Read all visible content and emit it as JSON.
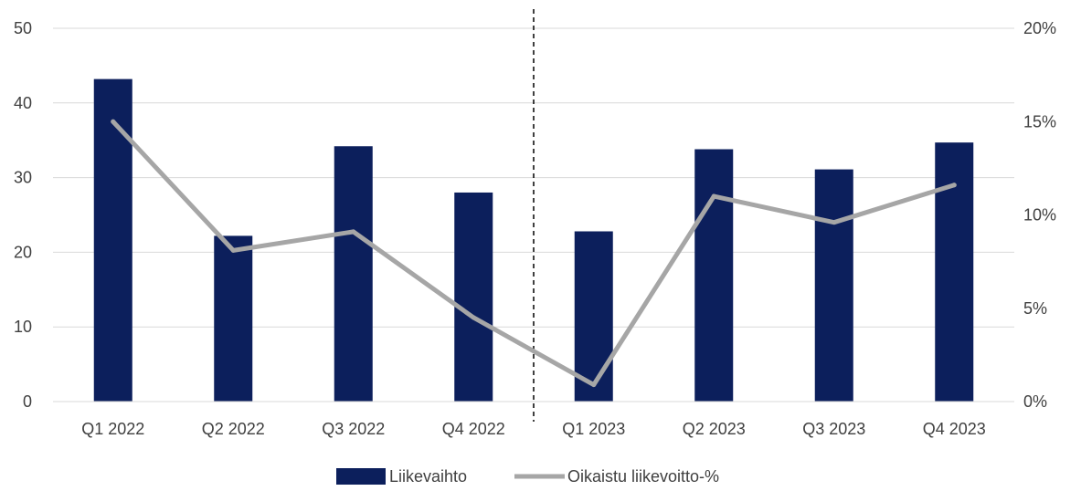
{
  "chart_data": {
    "type": "bar",
    "categories": [
      "Q1 2022",
      "Q2 2022",
      "Q3 2022",
      "Q4 2022",
      "Q1 2023",
      "Q2 2023",
      "Q3 2023",
      "Q4 2023"
    ],
    "series": [
      {
        "name": "Liikevaihto",
        "type": "bar",
        "axis": "left",
        "color": "#0c1f5c",
        "values": [
          43.2,
          22.2,
          34.2,
          28.0,
          22.8,
          33.8,
          31.1,
          34.7
        ]
      },
      {
        "name": "Oikaistu liikevoitto-%",
        "type": "line",
        "axis": "right",
        "color": "#a6a6a6",
        "values": [
          0.15,
          0.081,
          0.091,
          0.045,
          0.009,
          0.11,
          0.096,
          0.116
        ]
      }
    ],
    "y_left": {
      "ylim": [
        0,
        50
      ],
      "ticks": [
        "0",
        "10",
        "20",
        "30",
        "40",
        "50"
      ]
    },
    "y_right": {
      "ylim": [
        0,
        0.2
      ],
      "ticks": [
        "0%",
        "5%",
        "10%",
        "15%",
        "20%"
      ]
    },
    "divider": {
      "style": "dashed",
      "between": [
        "Q4 2022",
        "Q1 2023"
      ]
    },
    "grid": true,
    "legend_position": "bottom",
    "title": "",
    "xlabel": "",
    "ylabel": ""
  }
}
